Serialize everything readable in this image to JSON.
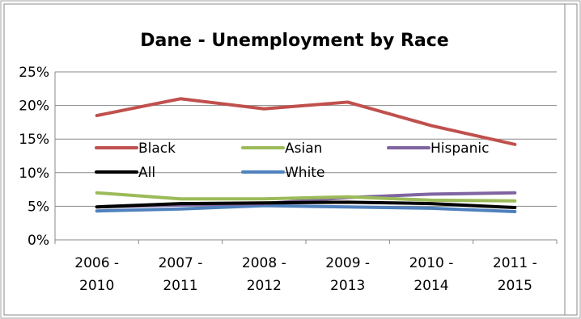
{
  "chart_data": {
    "type": "line",
    "title": "Dane - Unemployment by Race",
    "xlabel": "",
    "ylabel": "",
    "categories": [
      [
        "2006 -",
        "2010"
      ],
      [
        "2007 -",
        "2011"
      ],
      [
        "2008 -",
        "2012"
      ],
      [
        "2009 -",
        "2013"
      ],
      [
        "2010 -",
        "2014"
      ],
      [
        "2011 -",
        "2015"
      ]
    ],
    "ylim": [
      0,
      25
    ],
    "yticks": [
      0,
      5,
      10,
      15,
      20,
      25
    ],
    "ytick_labels": [
      "0%",
      "5%",
      "10%",
      "15%",
      "20%",
      "25%"
    ],
    "grid": "horizontal",
    "legend_position": "inside-middle",
    "series": [
      {
        "name": "Black",
        "color": "#C0504D",
        "values": [
          18.5,
          21.0,
          19.5,
          20.5,
          17.0,
          14.2
        ]
      },
      {
        "name": "Asian",
        "color": "#9BBB59",
        "values": [
          7.0,
          6.1,
          6.1,
          6.4,
          5.9,
          5.8
        ]
      },
      {
        "name": "Hispanic",
        "color": "#8064A2",
        "values": [
          4.9,
          5.2,
          5.4,
          6.3,
          6.8,
          7.0
        ]
      },
      {
        "name": "All",
        "color": "#000000",
        "values": [
          4.9,
          5.4,
          5.5,
          5.6,
          5.4,
          4.8
        ]
      },
      {
        "name": "White",
        "color": "#4F81BD",
        "values": [
          4.3,
          4.6,
          5.1,
          4.9,
          4.7,
          4.2
        ]
      }
    ]
  }
}
